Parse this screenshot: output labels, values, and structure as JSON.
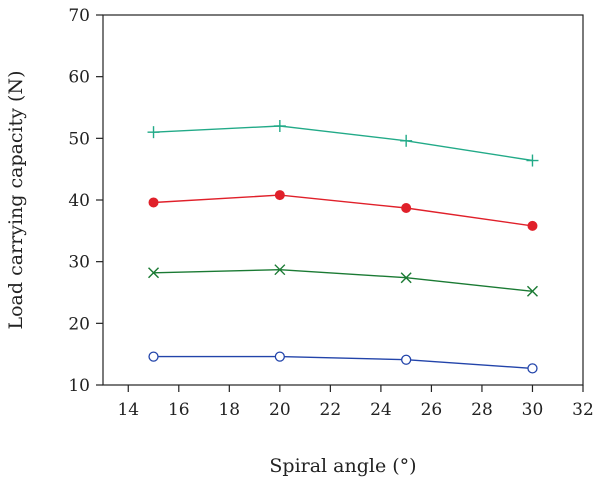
{
  "chart_data": {
    "type": "line",
    "xlabel": "Spiral angle (°)",
    "ylabel": "Load carrying capacity (N)",
    "xlim": [
      13,
      32
    ],
    "ylim": [
      10,
      70
    ],
    "xticks": [
      14,
      16,
      18,
      20,
      22,
      24,
      26,
      28,
      30,
      32
    ],
    "yticks": [
      10,
      20,
      30,
      40,
      50,
      60,
      70
    ],
    "grid": false,
    "legend": "none",
    "x": [
      15,
      20,
      25,
      30
    ],
    "series": [
      {
        "values": [
          51.0,
          52.0,
          49.6,
          46.4
        ],
        "color": "#22aa88",
        "marker": "plus"
      },
      {
        "values": [
          39.6,
          40.8,
          38.7,
          35.8
        ],
        "color": "#e0202a",
        "marker": "filled-circle"
      },
      {
        "values": [
          28.2,
          28.7,
          27.4,
          25.2
        ],
        "color": "#1a7a33",
        "marker": "cross"
      },
      {
        "values": [
          14.6,
          14.6,
          14.1,
          12.7
        ],
        "color": "#2244aa",
        "marker": "open-circle"
      }
    ]
  }
}
